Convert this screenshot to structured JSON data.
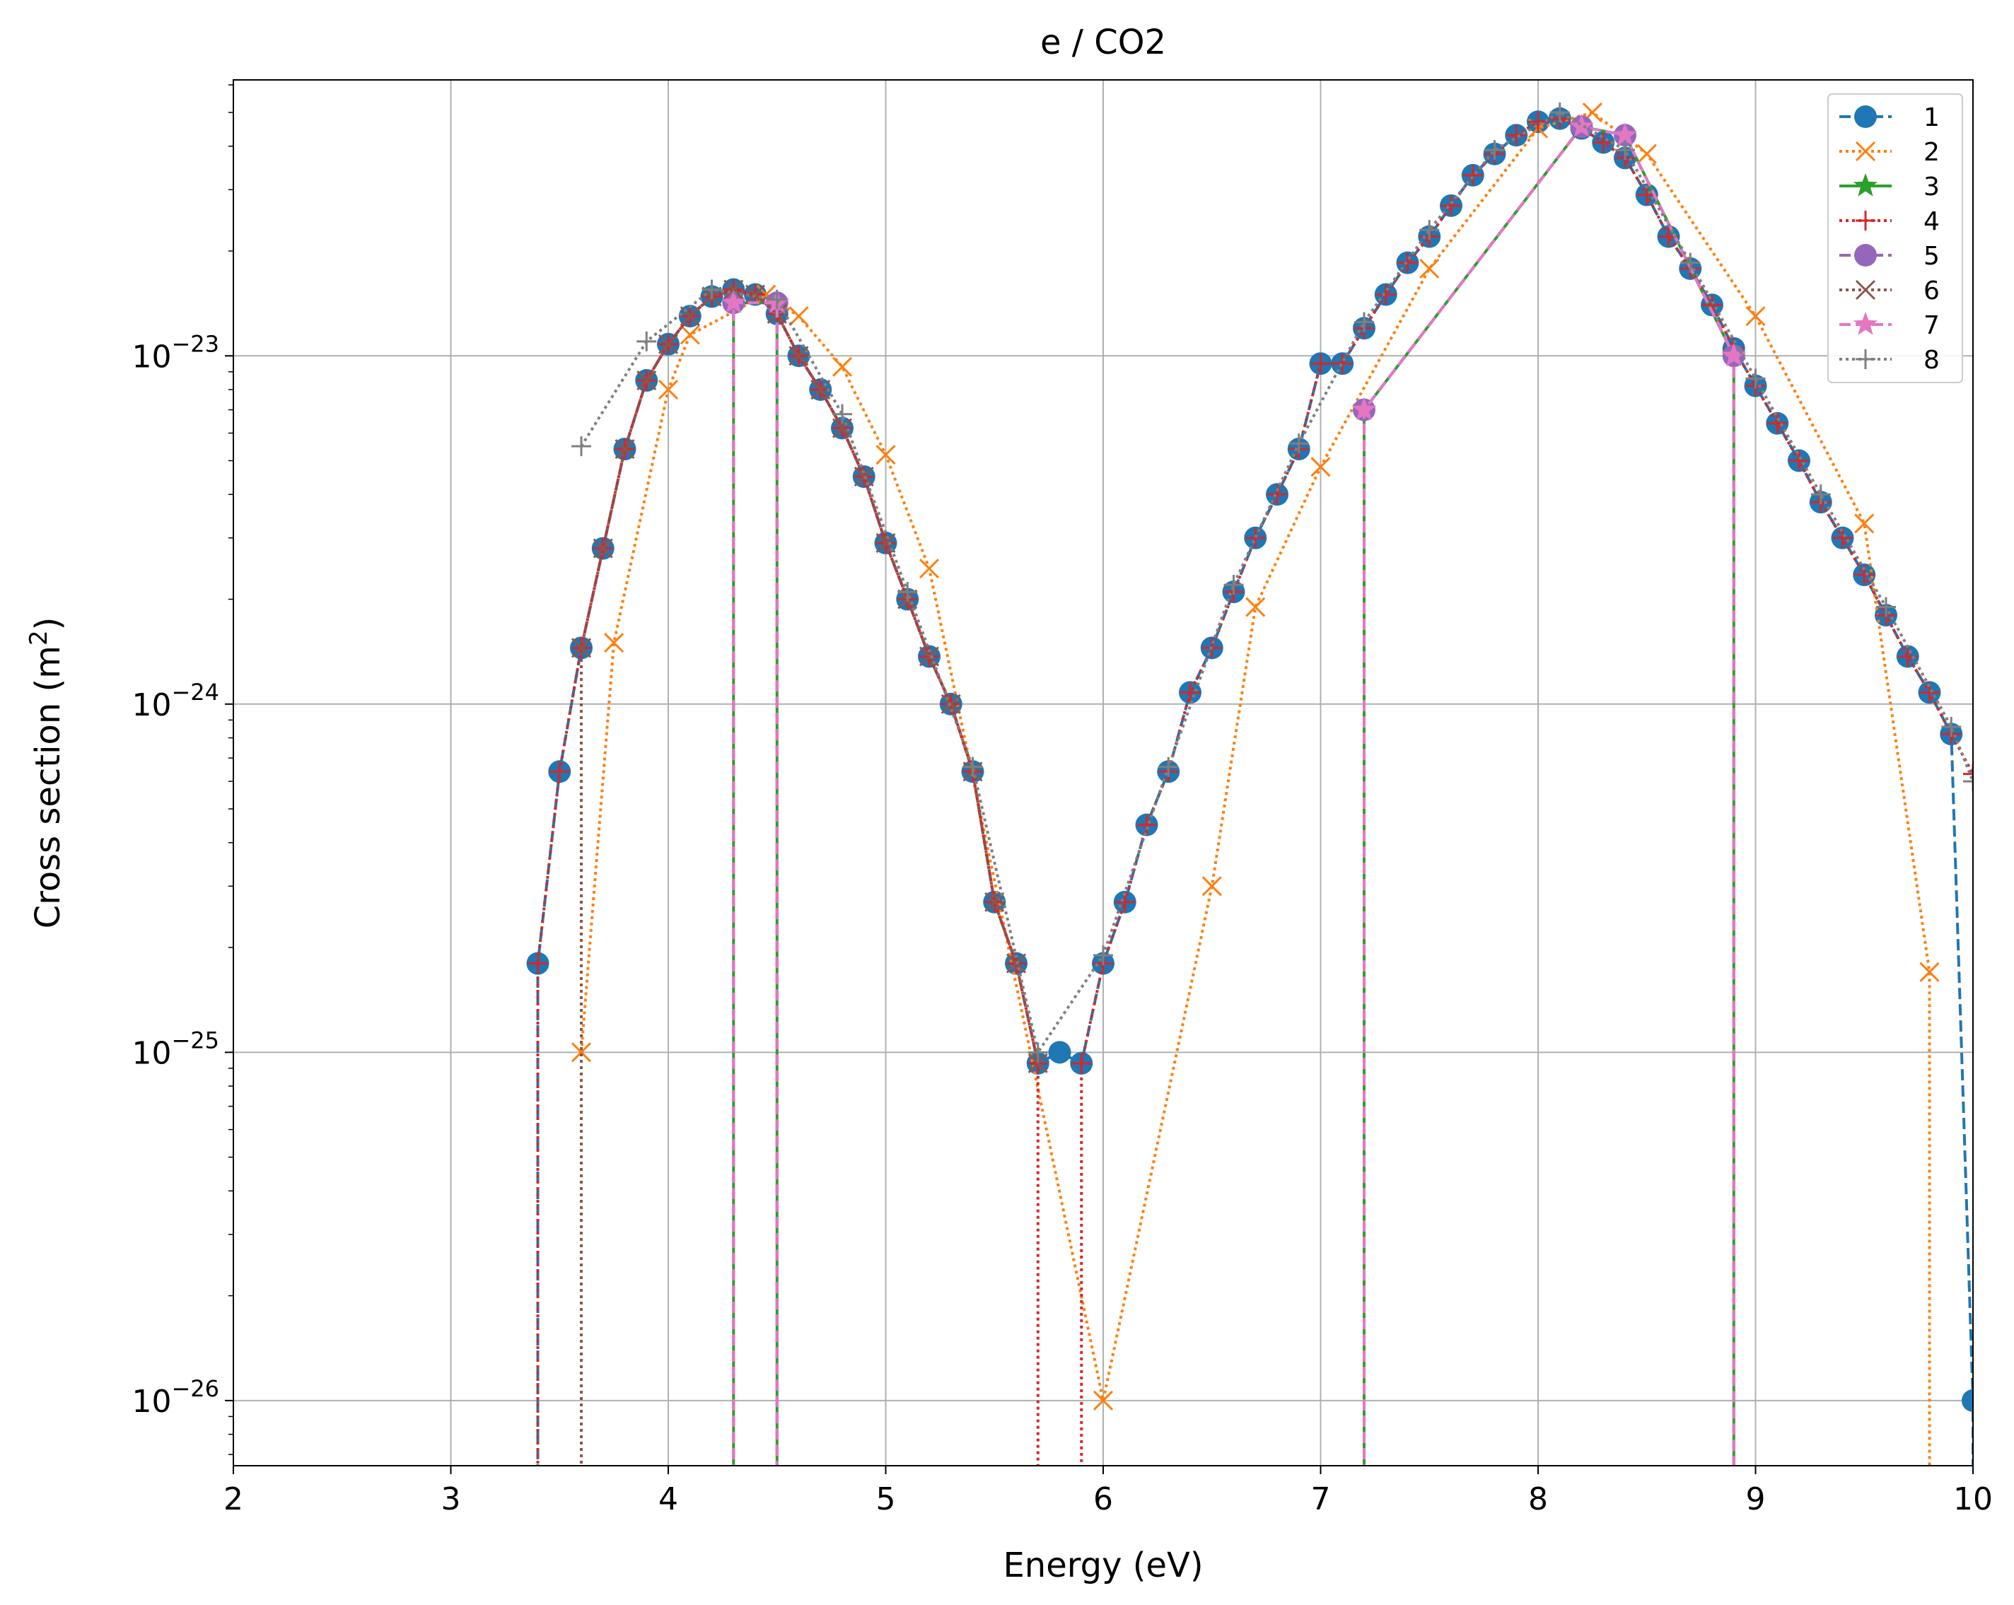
{
  "chart_data": {
    "type": "line",
    "title": "e / CO2",
    "xlabel": "Energy (eV)",
    "ylabel": "Cross section (m",
    "ylabel_sup": "2",
    "ylabel_end": ")",
    "y_scale": "log",
    "xlim": [
      2,
      10
    ],
    "ylim": [
      6.5e-27,
      6.2e-23
    ],
    "grid": true,
    "legend_position": "top-right",
    "x_ticks": [
      2,
      3,
      4,
      5,
      6,
      7,
      8,
      9,
      10
    ],
    "x_tick_labels": [
      "2",
      "3",
      "4",
      "5",
      "6",
      "7",
      "8",
      "9",
      "10"
    ],
    "y_ticks": [
      1e-26,
      1e-25,
      1e-24,
      1e-23
    ],
    "y_tick_base": [
      "10",
      "10",
      "10",
      "10"
    ],
    "y_tick_exp": [
      "−26",
      "−25",
      "−24",
      "−23"
    ],
    "colors": {
      "1": "#1f77b4",
      "2": "#ff7f0e",
      "3": "#2ca02c",
      "4": "#d62728",
      "5": "#9467bd",
      "6": "#8c564b",
      "7": "#e377c2",
      "8": "#7f7f7f"
    },
    "series": [
      {
        "name": "1",
        "color": "#1f77b4",
        "marker": "circle",
        "dash": "dashed",
        "points": [
          [
            3.4,
            1e-30
          ],
          [
            3.4,
            1.8e-25
          ],
          [
            3.5,
            6.4e-25
          ],
          [
            3.6,
            1.45e-24
          ],
          [
            3.7,
            2.8e-24
          ],
          [
            3.8,
            5.4e-24
          ],
          [
            3.9,
            8.5e-24
          ],
          [
            4.0,
            1.08e-23
          ],
          [
            4.1,
            1.3e-23
          ],
          [
            4.2,
            1.48e-23
          ],
          [
            4.3,
            1.55e-23
          ],
          [
            4.4,
            1.5e-23
          ],
          [
            4.5,
            1.32e-23
          ],
          [
            4.6,
            1e-23
          ],
          [
            4.7,
            8e-24
          ],
          [
            4.8,
            6.2e-24
          ],
          [
            4.9,
            4.5e-24
          ],
          [
            5.0,
            2.9e-24
          ],
          [
            5.1,
            2e-24
          ],
          [
            5.2,
            1.37e-24
          ],
          [
            5.3,
            1e-24
          ],
          [
            5.4,
            6.4e-25
          ],
          [
            5.5,
            2.7e-25
          ],
          [
            5.6,
            1.8e-25
          ],
          [
            5.7,
            9.3e-26
          ],
          [
            5.8,
            1e-25
          ],
          [
            5.9,
            9.3e-26
          ],
          [
            6.0,
            1.8e-25
          ],
          [
            6.1,
            2.7e-25
          ],
          [
            6.2,
            4.5e-25
          ],
          [
            6.3,
            6.4e-25
          ],
          [
            6.4,
            1.08e-24
          ],
          [
            6.5,
            1.45e-24
          ],
          [
            6.6,
            2.1e-24
          ],
          [
            6.7,
            3e-24
          ],
          [
            6.8,
            4e-24
          ],
          [
            6.9,
            5.4e-24
          ],
          [
            7.0,
            9.5e-24
          ],
          [
            7.1,
            9.5e-24
          ],
          [
            7.2,
            1.2e-23
          ],
          [
            7.3,
            1.5e-23
          ],
          [
            7.4,
            1.85e-23
          ],
          [
            7.5,
            2.2e-23
          ],
          [
            7.6,
            2.7e-23
          ],
          [
            7.7,
            3.3e-23
          ],
          [
            7.8,
            3.8e-23
          ],
          [
            7.9,
            4.3e-23
          ],
          [
            8.0,
            4.7e-23
          ],
          [
            8.1,
            4.8e-23
          ],
          [
            8.2,
            4.5e-23
          ],
          [
            8.3,
            4.1e-23
          ],
          [
            8.4,
            3.7e-23
          ],
          [
            8.5,
            2.9e-23
          ],
          [
            8.6,
            2.2e-23
          ],
          [
            8.7,
            1.78e-23
          ],
          [
            8.8,
            1.4e-23
          ],
          [
            8.9,
            1.05e-23
          ],
          [
            9.0,
            8.2e-24
          ],
          [
            9.1,
            6.4e-24
          ],
          [
            9.2,
            5e-24
          ],
          [
            9.3,
            3.8e-24
          ],
          [
            9.4,
            3e-24
          ],
          [
            9.5,
            2.35e-24
          ],
          [
            9.6,
            1.8e-24
          ],
          [
            9.7,
            1.37e-24
          ],
          [
            9.8,
            1.08e-24
          ],
          [
            9.9,
            8.2e-25
          ],
          [
            10.0,
            1e-26
          ],
          [
            10.0,
            1e-30
          ]
        ]
      },
      {
        "name": "2",
        "color": "#ff7f0e",
        "marker": "x",
        "dash": "dotted",
        "points": [
          [
            3.6,
            1e-25
          ],
          [
            3.75,
            1.5e-24
          ],
          [
            4.0,
            8e-24
          ],
          [
            4.1,
            1.15e-23
          ],
          [
            4.45,
            1.5e-23
          ],
          [
            4.6,
            1.3e-23
          ],
          [
            4.8,
            9.3e-24
          ],
          [
            5.0,
            5.2e-24
          ],
          [
            5.2,
            2.45e-24
          ],
          [
            6.0,
            1e-26
          ],
          [
            6.5,
            3e-25
          ],
          [
            6.7,
            1.9e-24
          ],
          [
            7.0,
            4.8e-24
          ],
          [
            7.5,
            1.78e-23
          ],
          [
            8.0,
            4.5e-23
          ],
          [
            8.25,
            5e-23
          ],
          [
            8.5,
            3.8e-23
          ],
          [
            9.0,
            1.3e-23
          ],
          [
            9.5,
            3.3e-24
          ],
          [
            9.8,
            1.7e-25
          ],
          [
            9.8,
            1e-30
          ]
        ]
      },
      {
        "name": "3",
        "color": "#2ca02c",
        "marker": "star",
        "dash": "solid",
        "points": [
          [
            4.3,
            1e-30
          ],
          [
            4.3,
            1.42e-23
          ],
          [
            4.5,
            1.42e-23
          ],
          [
            4.5,
            1e-30
          ],
          [
            7.2,
            1e-30
          ],
          [
            7.2,
            7e-24
          ],
          [
            8.2,
            4.55e-23
          ],
          [
            8.4,
            4.3e-23
          ],
          [
            8.9,
            1e-23
          ],
          [
            8.9,
            1e-30
          ]
        ]
      },
      {
        "name": "4",
        "color": "#d62728",
        "marker": "plus",
        "dash": "dotted",
        "points": [
          [
            3.4,
            1e-30
          ],
          [
            3.4,
            1.8e-25
          ],
          [
            3.5,
            6.4e-25
          ],
          [
            3.6,
            1.45e-24
          ],
          [
            3.7,
            2.8e-24
          ],
          [
            3.8,
            5.4e-24
          ],
          [
            3.9,
            8.5e-24
          ],
          [
            4.0,
            1.08e-23
          ],
          [
            4.1,
            1.3e-23
          ],
          [
            4.2,
            1.48e-23
          ],
          [
            4.3,
            1.55e-23
          ],
          [
            4.4,
            1.5e-23
          ],
          [
            4.5,
            1.32e-23
          ],
          [
            4.6,
            1e-23
          ],
          [
            4.7,
            8e-24
          ],
          [
            4.8,
            6.2e-24
          ],
          [
            4.9,
            4.5e-24
          ],
          [
            5.0,
            2.9e-24
          ],
          [
            5.1,
            2e-24
          ],
          [
            5.2,
            1.37e-24
          ],
          [
            5.3,
            1e-24
          ],
          [
            5.4,
            6.4e-25
          ],
          [
            5.5,
            2.7e-25
          ],
          [
            5.6,
            1.8e-25
          ],
          [
            5.7,
            9.3e-26
          ],
          [
            5.7,
            1e-30
          ],
          [
            5.9,
            1e-30
          ],
          [
            5.9,
            9.3e-26
          ],
          [
            6.0,
            1.8e-25
          ],
          [
            6.1,
            2.7e-25
          ],
          [
            6.2,
            4.5e-25
          ],
          [
            6.3,
            6.4e-25
          ],
          [
            6.4,
            1.08e-24
          ],
          [
            6.5,
            1.45e-24
          ],
          [
            6.6,
            2.1e-24
          ],
          [
            6.7,
            3e-24
          ],
          [
            6.8,
            4e-24
          ],
          [
            6.9,
            5.4e-24
          ],
          [
            7.0,
            9.5e-24
          ],
          [
            7.1,
            9.5e-24
          ],
          [
            7.2,
            1.2e-23
          ],
          [
            7.3,
            1.5e-23
          ],
          [
            7.4,
            1.85e-23
          ],
          [
            7.5,
            2.2e-23
          ],
          [
            7.6,
            2.7e-23
          ],
          [
            7.7,
            3.3e-23
          ],
          [
            7.8,
            3.8e-23
          ],
          [
            7.9,
            4.3e-23
          ],
          [
            8.0,
            4.7e-23
          ],
          [
            8.1,
            4.8e-23
          ],
          [
            8.2,
            4.5e-23
          ],
          [
            8.3,
            4.1e-23
          ],
          [
            8.4,
            3.7e-23
          ],
          [
            8.5,
            2.9e-23
          ],
          [
            8.6,
            2.2e-23
          ],
          [
            8.7,
            1.78e-23
          ],
          [
            8.8,
            1.4e-23
          ],
          [
            8.9,
            1.05e-23
          ],
          [
            9.0,
            8.2e-24
          ],
          [
            9.1,
            6.4e-24
          ],
          [
            9.2,
            5e-24
          ],
          [
            9.3,
            3.8e-24
          ],
          [
            9.4,
            3e-24
          ],
          [
            9.5,
            2.35e-24
          ],
          [
            9.6,
            1.8e-24
          ],
          [
            9.7,
            1.37e-24
          ],
          [
            9.8,
            1.08e-24
          ],
          [
            9.9,
            8.2e-25
          ],
          [
            10.0,
            6.3e-25
          ]
        ]
      },
      {
        "name": "5",
        "color": "#9467bd",
        "marker": "circle",
        "dash": "dashed",
        "points": [
          [
            4.3,
            1e-30
          ],
          [
            4.3,
            1.42e-23
          ],
          [
            4.5,
            1.42e-23
          ],
          [
            4.5,
            1e-30
          ],
          [
            7.2,
            1e-30
          ],
          [
            7.2,
            7e-24
          ],
          [
            8.2,
            4.55e-23
          ],
          [
            8.4,
            4.3e-23
          ],
          [
            8.9,
            1e-23
          ],
          [
            8.9,
            1e-30
          ]
        ]
      },
      {
        "name": "6",
        "color": "#8c564b",
        "marker": "x",
        "dash": "dotted",
        "points": [
          [
            3.6,
            1e-30
          ],
          [
            3.6,
            1.45e-24
          ],
          [
            3.7,
            2.8e-24
          ],
          [
            3.8,
            5.4e-24
          ],
          [
            3.9,
            8.5e-24
          ],
          [
            4.0,
            1.08e-23
          ],
          [
            4.1,
            1.3e-23
          ],
          [
            4.2,
            1.48e-23
          ],
          [
            4.3,
            1.55e-23
          ],
          [
            4.4,
            1.5e-23
          ],
          [
            4.5,
            1.32e-23
          ],
          [
            4.6,
            1e-23
          ],
          [
            4.7,
            8e-24
          ],
          [
            4.8,
            6.2e-24
          ],
          [
            4.9,
            4.5e-24
          ],
          [
            5.0,
            2.9e-24
          ],
          [
            5.1,
            2e-24
          ],
          [
            5.2,
            1.37e-24
          ],
          [
            5.3,
            1e-24
          ],
          [
            5.4,
            6.4e-25
          ],
          [
            5.5,
            2.7e-25
          ],
          [
            5.6,
            1.8e-25
          ],
          [
            5.7,
            9.3e-26
          ]
        ]
      },
      {
        "name": "7",
        "color": "#e377c2",
        "marker": "star",
        "dash": "dashed",
        "points": [
          [
            4.3,
            1e-30
          ],
          [
            4.3,
            1.42e-23
          ],
          [
            4.5,
            1.42e-23
          ],
          [
            4.5,
            1e-30
          ],
          [
            7.2,
            1e-30
          ],
          [
            7.2,
            7e-24
          ],
          [
            8.2,
            4.55e-23
          ],
          [
            8.4,
            4.3e-23
          ],
          [
            8.9,
            1e-23
          ],
          [
            8.9,
            1e-30
          ]
        ]
      },
      {
        "name": "8",
        "color": "#7f7f7f",
        "marker": "plus",
        "dash": "dotted",
        "points": [
          [
            3.6,
            5.5e-24
          ],
          [
            3.9,
            1.1e-23
          ],
          [
            4.2,
            1.55e-23
          ],
          [
            4.5,
            1.45e-23
          ],
          [
            4.8,
            6.8e-24
          ],
          [
            5.1,
            2.1e-24
          ],
          [
            5.4,
            6.6e-25
          ],
          [
            5.7,
            1e-25
          ],
          [
            6.0,
            1.9e-25
          ],
          [
            6.3,
            6.6e-25
          ],
          [
            6.6,
            2.2e-24
          ],
          [
            6.9,
            5.6e-24
          ],
          [
            7.2,
            1.25e-23
          ],
          [
            7.5,
            2.3e-23
          ],
          [
            7.8,
            3.9e-23
          ],
          [
            8.1,
            5e-23
          ],
          [
            8.4,
            3.9e-23
          ],
          [
            8.7,
            1.85e-23
          ],
          [
            9.0,
            8.6e-24
          ],
          [
            9.3,
            4e-24
          ],
          [
            9.6,
            1.9e-24
          ],
          [
            9.9,
            8.6e-25
          ],
          [
            10.0,
            6e-25
          ]
        ]
      }
    ]
  }
}
